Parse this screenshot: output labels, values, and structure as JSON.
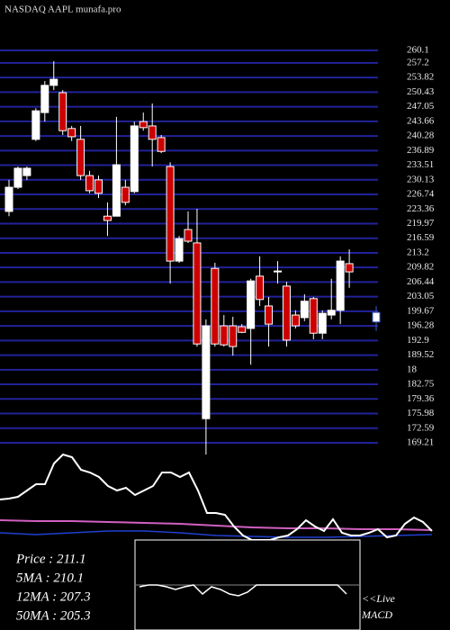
{
  "chart_data": {
    "type": "candlestick",
    "title": "NASDAQ AAPL munafa.pro",
    "ylim": [
      166.5,
      271.77
    ],
    "yticks": [
      260.1,
      257.2,
      253.82,
      250.43,
      247.05,
      243.66,
      240.28,
      236.89,
      233.51,
      230.13,
      226.74,
      223.36,
      219.97,
      216.59,
      213.2,
      209.82,
      206.44,
      203.05,
      199.67,
      196.28,
      192.9,
      189.52,
      {
        "value": 186.13,
        "label": "18"
      },
      182.75,
      179.36,
      175.98,
      172.59,
      169.21
    ],
    "grid": true,
    "grid_color": "#22229a",
    "up_color": "#ffffff",
    "down_color": "#cc0000",
    "open": [
      222.8,
      228.4,
      231.1,
      239.5,
      245.7,
      252.0,
      250.3,
      242.0,
      239.5,
      231.1,
      230.1,
      221.7,
      221.7,
      228.4,
      227.4,
      243.6,
      242.6,
      239.9,
      233.2,
      211.3,
      218.6,
      215.5,
      174.8,
      209.6,
      196.3,
      196.3,
      196.1,
      195.7,
      207.8,
      200.9,
      208.8,
      205.5,
      198.8,
      198.2,
      202.6,
      194.6,
      198.8,
      199.9,
      210.7
    ],
    "high": [
      230.1,
      233.2,
      233.2,
      246.7,
      253.0,
      257.6,
      250.9,
      242.6,
      242.6,
      232.2,
      231.1,
      224.9,
      244.7,
      230.1,
      243.6,
      245.7,
      247.8,
      240.5,
      234.2,
      217.1,
      222.8,
      223.4,
      197.8,
      210.9,
      198.8,
      198.4,
      196.7,
      207.2,
      212.4,
      203.0,
      211.3,
      206.5,
      199.9,
      203.6,
      203.0,
      199.9,
      207.2,
      212.4,
      214.0
    ],
    "low": [
      221.7,
      228.0,
      230.1,
      239.1,
      243.6,
      250.9,
      240.5,
      239.1,
      230.1,
      227.0,
      225.9,
      217.1,
      221.7,
      224.2,
      227.0,
      241.5,
      233.2,
      236.3,
      206.1,
      210.9,
      215.5,
      191.5,
      166.5,
      191.5,
      191.5,
      189.4,
      194.6,
      187.3,
      200.9,
      191.5,
      206.1,
      191.5,
      195.7,
      197.4,
      193.2,
      193.2,
      197.8,
      196.7,
      205.1
    ],
    "close": [
      228.4,
      232.8,
      232.8,
      246.1,
      252.0,
      253.4,
      241.5,
      240.1,
      231.1,
      227.6,
      227.0,
      220.7,
      233.6,
      224.9,
      242.6,
      242.2,
      239.5,
      236.7,
      211.3,
      216.5,
      215.9,
      192.1,
      196.3,
      192.1,
      191.9,
      191.5,
      194.8,
      206.7,
      202.4,
      196.7,
      209.0,
      193.0,
      196.3,
      202.0,
      194.6,
      199.2,
      199.9,
      211.3,
      208.8
    ],
    "forecast": {
      "open": 199.4,
      "high": 200.9,
      "low": 195.1,
      "close": 197.2,
      "color": "#3a5fd0"
    },
    "indicators": {
      "ylim": [
        0,
        100
      ],
      "oscillator": {
        "color": "#ffffff",
        "values": [
          45,
          46,
          48,
          55,
          62,
          62,
          85,
          95,
          92,
          78,
          75,
          70,
          60,
          55,
          58,
          50,
          55,
          60,
          75,
          75,
          70,
          75,
          55,
          30,
          30,
          28,
          15,
          5,
          0,
          0,
          0,
          3,
          5,
          12,
          22,
          15,
          10,
          23,
          8,
          5,
          5,
          8,
          12,
          3,
          5,
          18,
          25,
          20,
          10
        ]
      },
      "ma_pink": {
        "color": "#d060c0",
        "values": [
          22,
          21,
          21,
          20,
          19,
          18,
          16,
          14,
          13,
          13,
          12,
          12,
          11
        ]
      },
      "ma_blue": {
        "color": "#2040d0",
        "values": [
          8,
          6,
          8,
          10,
          10,
          8,
          5,
          4,
          3,
          3,
          4,
          5,
          6
        ]
      }
    },
    "macd": {
      "ylim": [
        -5,
        5
      ],
      "color": "#ffffff",
      "values": [
        -0.2,
        0,
        0,
        -0.2,
        -0.5,
        -0.2,
        0,
        -1,
        -0.2,
        -0.5,
        -1,
        -1.2,
        -0.8,
        0,
        0,
        0,
        0,
        0,
        0,
        0,
        0,
        0,
        0,
        -1
      ],
      "label_1": "<<Live",
      "label_2": "MACD"
    },
    "stats": [
      "Price   : 211.1",
      "5MA  : 210.1",
      "12MA : 207.3",
      "50MA : 205.3"
    ]
  }
}
